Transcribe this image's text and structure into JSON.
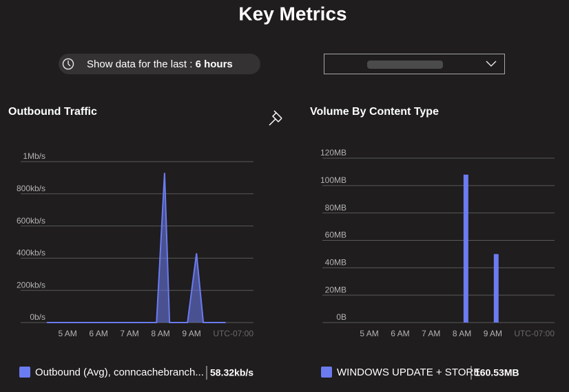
{
  "title": "Key Metrics",
  "time_filter": {
    "label": "Show data for the last :",
    "value": "6 hours"
  },
  "chart_data": [
    {
      "type": "area",
      "title": "Outbound Traffic",
      "x": [
        4.33,
        7.87,
        8.13,
        8.29,
        8.87,
        9.16,
        9.38,
        10.1
      ],
      "series": [
        {
          "name": "Outbound (Avg), conncachebranch...",
          "color": "#6b7bf0",
          "values": [
            0,
            0,
            930,
            0,
            0,
            430,
            0,
            0
          ]
        }
      ],
      "legend_value": "58.32kb/s",
      "xlim": [
        4.33,
        11
      ],
      "xticks": [
        {
          "value": 5,
          "label": "5 AM"
        },
        {
          "value": 6,
          "label": "6 AM"
        },
        {
          "value": 7,
          "label": "7 AM"
        },
        {
          "value": 8,
          "label": "8 AM"
        },
        {
          "value": 9,
          "label": "9 AM"
        }
      ],
      "x_axis_note": "UTC-07:00",
      "ylim": [
        0,
        1000
      ],
      "yticks": [
        {
          "value": 0,
          "label": "0b/s"
        },
        {
          "value": 200,
          "label": "200kb/s"
        },
        {
          "value": 400,
          "label": "400kb/s"
        },
        {
          "value": 600,
          "label": "600kb/s"
        },
        {
          "value": 800,
          "label": "800kb/s"
        },
        {
          "value": 1000,
          "label": "1Mb/s"
        }
      ],
      "grid": true
    },
    {
      "type": "bar",
      "title": "Volume By Content Type",
      "x": [
        8.13,
        9.11
      ],
      "series": [
        {
          "name": "WINDOWS UPDATE + STORE",
          "color": "#6b7bf0",
          "values": [
            108,
            50
          ]
        }
      ],
      "legend_value": "160.53MB",
      "xlim": [
        3.48,
        11
      ],
      "xticks": [
        {
          "value": 5,
          "label": "5 AM"
        },
        {
          "value": 6,
          "label": "6 AM"
        },
        {
          "value": 7,
          "label": "7 AM"
        },
        {
          "value": 8,
          "label": "8 AM"
        },
        {
          "value": 9,
          "label": "9 AM"
        }
      ],
      "x_axis_note": "UTC-07:00",
      "ylim": [
        0,
        120
      ],
      "yticks": [
        {
          "value": 0,
          "label": "0B"
        },
        {
          "value": 20,
          "label": "20MB"
        },
        {
          "value": 40,
          "label": "40MB"
        },
        {
          "value": 60,
          "label": "60MB"
        },
        {
          "value": 80,
          "label": "80MB"
        },
        {
          "value": 100,
          "label": "100MB"
        },
        {
          "value": 120,
          "label": "120MB"
        }
      ],
      "grid": true
    }
  ]
}
